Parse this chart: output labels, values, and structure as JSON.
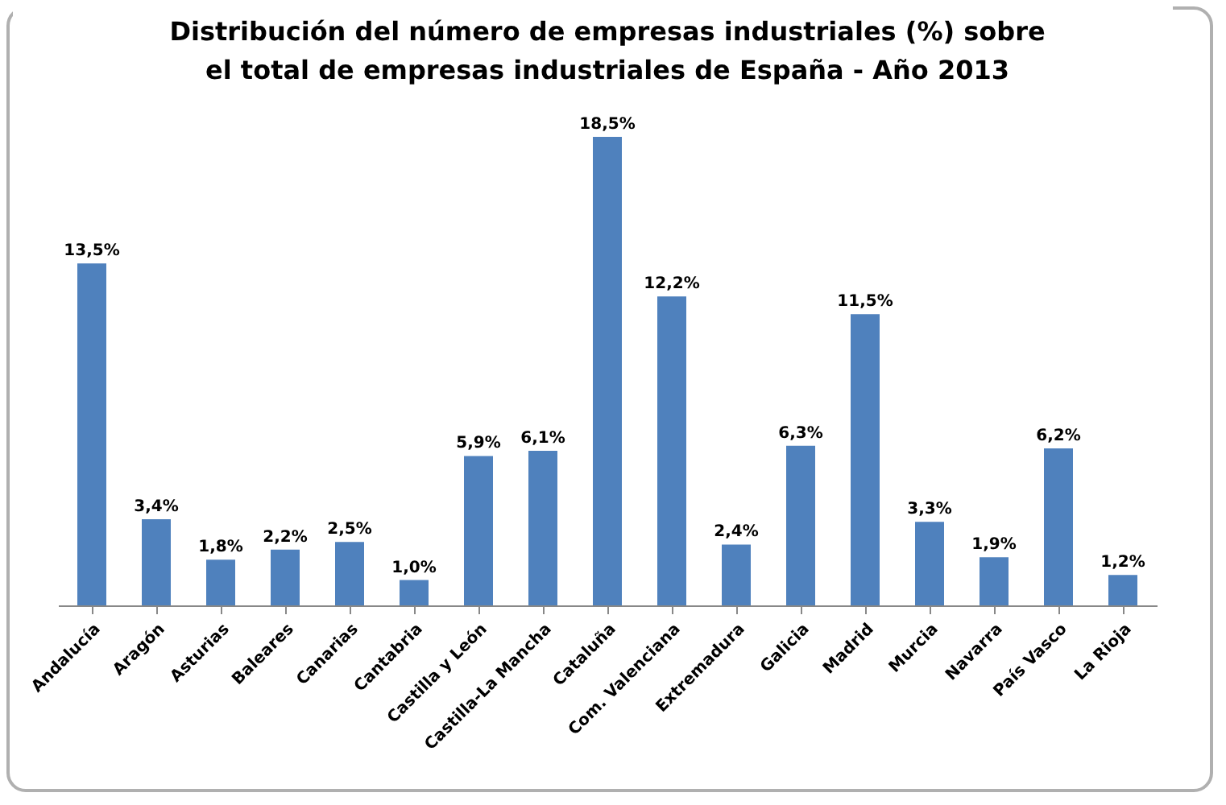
{
  "chart_data": {
    "type": "bar",
    "title": "Distribución del número de empresas industriales (%) sobre\nel total de empresas industriales de España - Año 2013",
    "categories": [
      "Andalucía",
      "Aragón",
      "Asturias",
      "Baleares",
      "Canarias",
      "Cantabria",
      "Castilla y León",
      "Castilla-La Mancha",
      "Cataluña",
      "Com. Valenciana",
      "Extremadura",
      "Galicia",
      "Madrid",
      "Murcia",
      "Navarra",
      "País Vasco",
      "La Rioja"
    ],
    "values": [
      13.5,
      3.4,
      1.8,
      2.2,
      2.5,
      1.0,
      5.9,
      6.1,
      18.5,
      12.2,
      2.4,
      6.3,
      11.5,
      3.3,
      1.9,
      6.2,
      1.2
    ],
    "value_labels": [
      "13,5%",
      "3,4%",
      "1,8%",
      "2,2%",
      "2,5%",
      "1,0%",
      "5,9%",
      "6,1%",
      "18,5%",
      "12,2%",
      "2,4%",
      "6,3%",
      "11,5%",
      "3,3%",
      "1,9%",
      "6,2%",
      "1,2%"
    ],
    "color": "#4f81bd"
  }
}
